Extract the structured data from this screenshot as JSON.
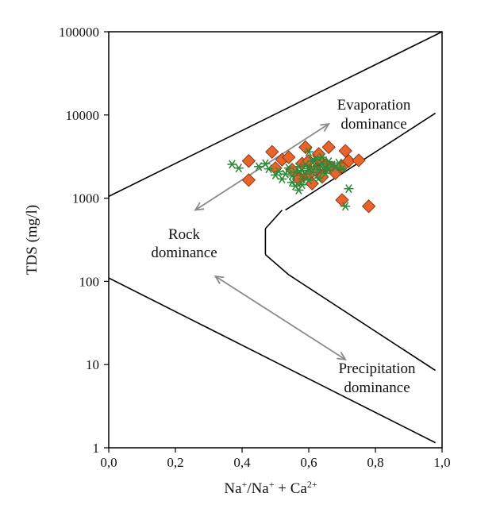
{
  "chart_data": {
    "type": "scatter",
    "title": "",
    "xlabel": {
      "base": "Na",
      "sup1": "+",
      "mid": "/Na",
      "sup2": "+",
      "plus": " + Ca",
      "sup3": "2+"
    },
    "ylabel": "TDS (mg/l)",
    "x_range": [
      0,
      1
    ],
    "y_range": [
      1,
      100000
    ],
    "y_scale": "log",
    "x_ticks": [
      "0,0",
      "0,2",
      "0,4",
      "0,6",
      "0,8",
      "1,0"
    ],
    "y_ticks": [
      "1",
      "10",
      "100",
      "1000",
      "10000",
      "100000"
    ],
    "grid": false,
    "legend": "none",
    "colors": {
      "diamond_fill": "#e8642c",
      "diamond_stroke": "#8a3a12",
      "star": "#2e8b3a",
      "boundary": "#000000",
      "arrow": "#8a8a8a"
    },
    "regions": [
      {
        "line1": "Evaporation",
        "line2": "dominance"
      },
      {
        "line1": "Rock",
        "line2": "dominance"
      },
      {
        "line1": "Precipitation",
        "line2": "dominance"
      }
    ],
    "boundaries": [
      {
        "name": "upper-boundary",
        "points": [
          [
            0,
            1050
          ],
          [
            1.0,
            100000
          ]
        ]
      },
      {
        "name": "lower-boundary",
        "points": [
          [
            0,
            110
          ],
          [
            0.98,
            1.15
          ]
        ]
      },
      {
        "name": "inner-upper-boundary",
        "points": [
          [
            0.98,
            10500
          ],
          [
            0.53,
            720
          ]
        ]
      },
      {
        "name": "inner-upper-stub",
        "points": [
          [
            0.52,
            720
          ],
          [
            0.47,
            430
          ]
        ]
      },
      {
        "name": "inner-vertical",
        "points": [
          [
            0.47,
            430
          ],
          [
            0.47,
            210
          ]
        ]
      },
      {
        "name": "inner-lower-boundary",
        "points": [
          [
            0.47,
            210
          ],
          [
            0.54,
            120
          ],
          [
            0.98,
            8.5
          ]
        ]
      }
    ],
    "arrows": [
      {
        "name": "upper-double-arrow",
        "from": [
          0.26,
          720
        ],
        "to": [
          0.66,
          7800
        ]
      },
      {
        "name": "lower-double-arrow",
        "from": [
          0.32,
          115
        ],
        "to": [
          0.71,
          11.5
        ]
      }
    ],
    "series": [
      {
        "marker": "diamond",
        "points": [
          [
            0.42,
            2800
          ],
          [
            0.42,
            1650
          ],
          [
            0.49,
            3600
          ],
          [
            0.5,
            2300
          ],
          [
            0.52,
            2900
          ],
          [
            0.54,
            3100
          ],
          [
            0.56,
            2000
          ],
          [
            0.57,
            1700
          ],
          [
            0.58,
            2600
          ],
          [
            0.59,
            4100
          ],
          [
            0.6,
            1900
          ],
          [
            0.61,
            1500
          ],
          [
            0.62,
            2200
          ],
          [
            0.63,
            2900
          ],
          [
            0.63,
            3400
          ],
          [
            0.64,
            1800
          ],
          [
            0.65,
            2500
          ],
          [
            0.66,
            4100
          ],
          [
            0.67,
            2300
          ],
          [
            0.68,
            2000
          ],
          [
            0.7,
            2400
          ],
          [
            0.71,
            3700
          ],
          [
            0.72,
            2800
          ],
          [
            0.75,
            2850
          ],
          [
            0.7,
            950
          ],
          [
            0.78,
            800
          ],
          [
            0.55,
            2200
          ],
          [
            0.6,
            2800
          ]
        ]
      },
      {
        "marker": "star",
        "points": [
          [
            0.37,
            2550
          ],
          [
            0.39,
            2300
          ],
          [
            0.45,
            2400
          ],
          [
            0.47,
            2600
          ],
          [
            0.48,
            2250
          ],
          [
            0.5,
            1900
          ],
          [
            0.51,
            2100
          ],
          [
            0.52,
            1700
          ],
          [
            0.53,
            1950
          ],
          [
            0.54,
            2300
          ],
          [
            0.55,
            1550
          ],
          [
            0.55,
            1850
          ],
          [
            0.56,
            2050
          ],
          [
            0.56,
            1400
          ],
          [
            0.57,
            2400
          ],
          [
            0.57,
            1250
          ],
          [
            0.58,
            1700
          ],
          [
            0.58,
            2150
          ],
          [
            0.59,
            2500
          ],
          [
            0.59,
            1950
          ],
          [
            0.6,
            2250
          ],
          [
            0.6,
            1650
          ],
          [
            0.61,
            2800
          ],
          [
            0.61,
            2050
          ],
          [
            0.62,
            2400
          ],
          [
            0.62,
            2950
          ],
          [
            0.63,
            1750
          ],
          [
            0.63,
            2200
          ],
          [
            0.64,
            2600
          ],
          [
            0.64,
            3100
          ],
          [
            0.65,
            2350
          ],
          [
            0.65,
            2000
          ],
          [
            0.66,
            2750
          ],
          [
            0.66,
            2200
          ],
          [
            0.67,
            2500
          ],
          [
            0.68,
            2350
          ],
          [
            0.69,
            2650
          ],
          [
            0.7,
            2250
          ],
          [
            0.72,
            1300
          ],
          [
            0.71,
            800
          ],
          [
            0.6,
            3600
          ],
          [
            0.58,
            1450
          ]
        ]
      }
    ]
  }
}
